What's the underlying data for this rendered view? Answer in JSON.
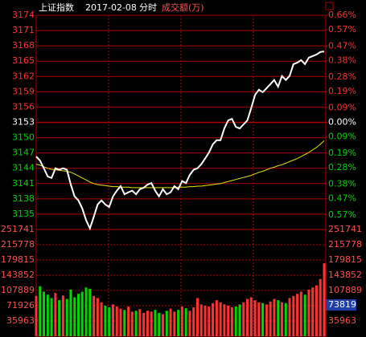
{
  "chart_data": {
    "type": "line",
    "title": {
      "name": "上证指数",
      "date": "2017-02-08",
      "mode": "分时",
      "volume_label": "成交额(万)"
    },
    "series": [
      {
        "color": "#ffffff",
        "values": [
          3146.3,
          3145.5,
          3144.0,
          3142.4,
          3142.1,
          3144.0,
          3143.7,
          3144.0,
          3143.7,
          3140.8,
          3138.5,
          3137.7,
          3136.1,
          3133.8,
          3132.2,
          3134.5,
          3136.9,
          3137.7,
          3136.9,
          3136.4,
          3138.5,
          3139.6,
          3140.5,
          3138.9,
          3139.3,
          3139.6,
          3138.9,
          3139.9,
          3140.2,
          3140.8,
          3141.1,
          3139.6,
          3138.5,
          3139.9,
          3138.9,
          3139.3,
          3140.5,
          3139.9,
          3141.5,
          3141.1,
          3142.7,
          3143.7,
          3144.0,
          3144.8,
          3145.9,
          3147.1,
          3148.7,
          3149.5,
          3149.5,
          3151.8,
          3153.4,
          3153.7,
          3152.1,
          3151.8,
          3152.6,
          3153.4,
          3155.8,
          3158.4,
          3159.4,
          3158.9,
          3159.7,
          3160.5,
          3161.3,
          3160.0,
          3162.1,
          3161.3,
          3162.1,
          3164.4,
          3164.7,
          3165.2,
          3164.4,
          3165.7,
          3166.0,
          3166.3,
          3166.8,
          3166.9
        ]
      },
      {
        "color": "#e6e600",
        "values": [
          3144.8,
          3144.6,
          3144.3,
          3144.0,
          3143.8,
          3143.7,
          3143.6,
          3143.5,
          3143.4,
          3143.2,
          3142.9,
          3142.5,
          3142.1,
          3141.7,
          3141.3,
          3141.0,
          3140.8,
          3140.7,
          3140.6,
          3140.5,
          3140.4,
          3140.4,
          3140.3,
          3140.3,
          3140.3,
          3140.2,
          3140.2,
          3140.2,
          3140.2,
          3140.2,
          3140.2,
          3140.2,
          3140.2,
          3140.2,
          3140.2,
          3140.2,
          3140.2,
          3140.3,
          3140.3,
          3140.3,
          3140.4,
          3140.4,
          3140.5,
          3140.5,
          3140.6,
          3140.7,
          3140.8,
          3140.9,
          3141.0,
          3141.2,
          3141.4,
          3141.6,
          3141.8,
          3142.0,
          3142.2,
          3142.4,
          3142.6,
          3142.9,
          3143.2,
          3143.4,
          3143.7,
          3144.0,
          3144.2,
          3144.5,
          3144.7,
          3145.0,
          3145.3,
          3145.6,
          3145.9,
          3146.3,
          3146.7,
          3147.1,
          3147.6,
          3148.1,
          3148.7,
          3149.4
        ]
      }
    ],
    "ylim": [
      3132,
      3174
    ],
    "yticks": [
      3174,
      3171,
      3168,
      3165,
      3162,
      3159,
      3156,
      3153,
      3150,
      3147,
      3144,
      3141,
      3138,
      3135
    ],
    "y2lim": [
      -0.66,
      0.66
    ],
    "y2ticks": [
      {
        "value": 0.66,
        "label": "0.66%"
      },
      {
        "value": 0.57,
        "label": "0.57%"
      },
      {
        "value": 0.47,
        "label": "0.47%"
      },
      {
        "value": 0.38,
        "label": "0.38%"
      },
      {
        "value": 0.28,
        "label": "0.28%"
      },
      {
        "value": 0.19,
        "label": "0.19%"
      },
      {
        "value": 0.09,
        "label": "0.09%"
      },
      {
        "value": 0,
        "label": "0.00%"
      },
      {
        "value": -0.09,
        "label": "0.09%"
      },
      {
        "value": -0.19,
        "label": "0.19%"
      },
      {
        "value": -0.28,
        "label": "0.28%"
      },
      {
        "value": -0.38,
        "label": "0.38%"
      },
      {
        "value": -0.47,
        "label": "0.47%"
      },
      {
        "value": -0.57,
        "label": "0.57%"
      }
    ],
    "volume": {
      "values": [
        95000,
        118000,
        105000,
        98000,
        90000,
        102000,
        85000,
        96000,
        88000,
        110000,
        92000,
        100000,
        105000,
        115000,
        112000,
        95000,
        90000,
        80000,
        72000,
        68000,
        75000,
        70000,
        65000,
        62000,
        70000,
        58000,
        60000,
        64000,
        55000,
        60000,
        58000,
        62000,
        55000,
        52000,
        60000,
        65000,
        58000,
        62000,
        70000,
        66000,
        60000,
        68000,
        90000,
        75000,
        72000,
        70000,
        78000,
        85000,
        80000,
        75000,
        72000,
        68000,
        70000,
        75000,
        80000,
        88000,
        92000,
        85000,
        80000,
        78000,
        75000,
        82000,
        88000,
        85000,
        80000,
        78000,
        90000,
        95000,
        100000,
        105000,
        98000,
        110000,
        115000,
        120000,
        135000,
        172000
      ],
      "up_color": "#ff3232",
      "down_color": "#00d800",
      "ylim": [
        0,
        251741
      ],
      "yticks": [
        251741,
        215778,
        179815,
        143852,
        107889,
        71926,
        35963
      ],
      "marker": 73819
    },
    "grid": true,
    "grid_color": "#b00000"
  }
}
